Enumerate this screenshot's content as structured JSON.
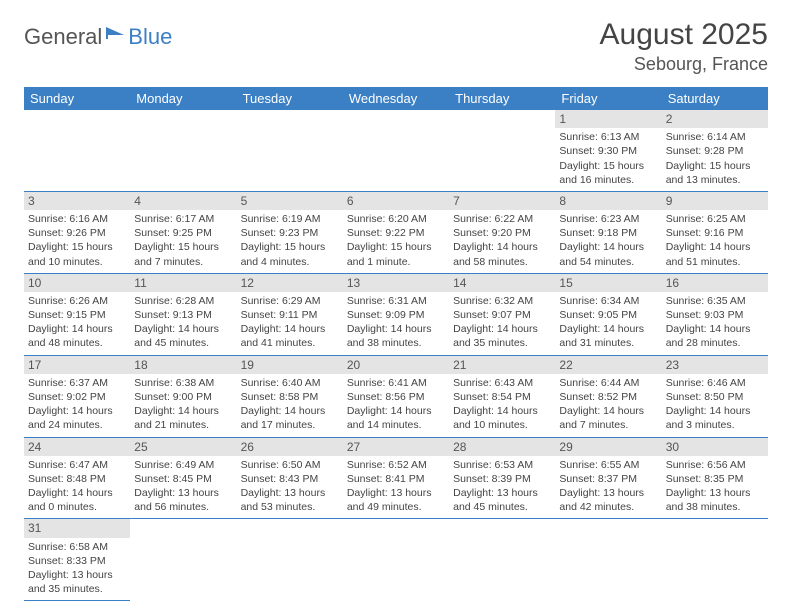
{
  "brand": {
    "part1": "General",
    "part2": "Blue"
  },
  "title": "August 2025",
  "location": "Sebourg, France",
  "colors": {
    "header_bg": "#3b7fc4",
    "header_text": "#ffffff",
    "daynum_bg": "#e4e4e4",
    "border": "#3b7fc4",
    "text": "#444444"
  },
  "weekdays": [
    "Sunday",
    "Monday",
    "Tuesday",
    "Wednesday",
    "Thursday",
    "Friday",
    "Saturday"
  ],
  "grid": [
    [
      null,
      null,
      null,
      null,
      null,
      {
        "n": "1",
        "sr": "6:13 AM",
        "ss": "9:30 PM",
        "dl": "15 hours and 16 minutes."
      },
      {
        "n": "2",
        "sr": "6:14 AM",
        "ss": "9:28 PM",
        "dl": "15 hours and 13 minutes."
      }
    ],
    [
      {
        "n": "3",
        "sr": "6:16 AM",
        "ss": "9:26 PM",
        "dl": "15 hours and 10 minutes."
      },
      {
        "n": "4",
        "sr": "6:17 AM",
        "ss": "9:25 PM",
        "dl": "15 hours and 7 minutes."
      },
      {
        "n": "5",
        "sr": "6:19 AM",
        "ss": "9:23 PM",
        "dl": "15 hours and 4 minutes."
      },
      {
        "n": "6",
        "sr": "6:20 AM",
        "ss": "9:22 PM",
        "dl": "15 hours and 1 minute."
      },
      {
        "n": "7",
        "sr": "6:22 AM",
        "ss": "9:20 PM",
        "dl": "14 hours and 58 minutes."
      },
      {
        "n": "8",
        "sr": "6:23 AM",
        "ss": "9:18 PM",
        "dl": "14 hours and 54 minutes."
      },
      {
        "n": "9",
        "sr": "6:25 AM",
        "ss": "9:16 PM",
        "dl": "14 hours and 51 minutes."
      }
    ],
    [
      {
        "n": "10",
        "sr": "6:26 AM",
        "ss": "9:15 PM",
        "dl": "14 hours and 48 minutes."
      },
      {
        "n": "11",
        "sr": "6:28 AM",
        "ss": "9:13 PM",
        "dl": "14 hours and 45 minutes."
      },
      {
        "n": "12",
        "sr": "6:29 AM",
        "ss": "9:11 PM",
        "dl": "14 hours and 41 minutes."
      },
      {
        "n": "13",
        "sr": "6:31 AM",
        "ss": "9:09 PM",
        "dl": "14 hours and 38 minutes."
      },
      {
        "n": "14",
        "sr": "6:32 AM",
        "ss": "9:07 PM",
        "dl": "14 hours and 35 minutes."
      },
      {
        "n": "15",
        "sr": "6:34 AM",
        "ss": "9:05 PM",
        "dl": "14 hours and 31 minutes."
      },
      {
        "n": "16",
        "sr": "6:35 AM",
        "ss": "9:03 PM",
        "dl": "14 hours and 28 minutes."
      }
    ],
    [
      {
        "n": "17",
        "sr": "6:37 AM",
        "ss": "9:02 PM",
        "dl": "14 hours and 24 minutes."
      },
      {
        "n": "18",
        "sr": "6:38 AM",
        "ss": "9:00 PM",
        "dl": "14 hours and 21 minutes."
      },
      {
        "n": "19",
        "sr": "6:40 AM",
        "ss": "8:58 PM",
        "dl": "14 hours and 17 minutes."
      },
      {
        "n": "20",
        "sr": "6:41 AM",
        "ss": "8:56 PM",
        "dl": "14 hours and 14 minutes."
      },
      {
        "n": "21",
        "sr": "6:43 AM",
        "ss": "8:54 PM",
        "dl": "14 hours and 10 minutes."
      },
      {
        "n": "22",
        "sr": "6:44 AM",
        "ss": "8:52 PM",
        "dl": "14 hours and 7 minutes."
      },
      {
        "n": "23",
        "sr": "6:46 AM",
        "ss": "8:50 PM",
        "dl": "14 hours and 3 minutes."
      }
    ],
    [
      {
        "n": "24",
        "sr": "6:47 AM",
        "ss": "8:48 PM",
        "dl": "14 hours and 0 minutes."
      },
      {
        "n": "25",
        "sr": "6:49 AM",
        "ss": "8:45 PM",
        "dl": "13 hours and 56 minutes."
      },
      {
        "n": "26",
        "sr": "6:50 AM",
        "ss": "8:43 PM",
        "dl": "13 hours and 53 minutes."
      },
      {
        "n": "27",
        "sr": "6:52 AM",
        "ss": "8:41 PM",
        "dl": "13 hours and 49 minutes."
      },
      {
        "n": "28",
        "sr": "6:53 AM",
        "ss": "8:39 PM",
        "dl": "13 hours and 45 minutes."
      },
      {
        "n": "29",
        "sr": "6:55 AM",
        "ss": "8:37 PM",
        "dl": "13 hours and 42 minutes."
      },
      {
        "n": "30",
        "sr": "6:56 AM",
        "ss": "8:35 PM",
        "dl": "13 hours and 38 minutes."
      }
    ],
    [
      {
        "n": "31",
        "sr": "6:58 AM",
        "ss": "8:33 PM",
        "dl": "13 hours and 35 minutes."
      },
      null,
      null,
      null,
      null,
      null,
      null
    ]
  ],
  "labels": {
    "sunrise": "Sunrise:",
    "sunset": "Sunset:",
    "daylight": "Daylight:"
  }
}
